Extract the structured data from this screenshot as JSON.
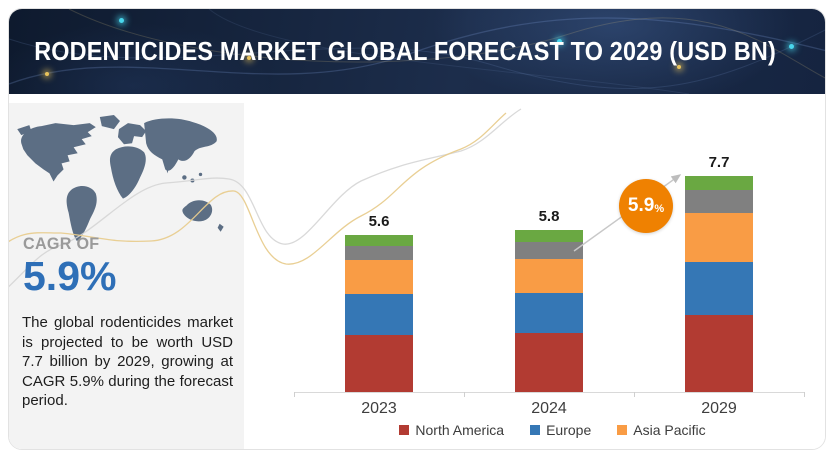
{
  "header": {
    "title": "RODENTICIDES MARKET GLOBAL FORECAST TO 2029 (USD BN)"
  },
  "sidebar": {
    "cagr_label": "CAGR OF",
    "cagr_value": "5.9%",
    "description": "The global rodenticides market is projected to be worth USD 7.7 billion by 2029, growing at CAGR 5.9% during the forecast period."
  },
  "colors": {
    "header_bg": "#16243c",
    "panel_bg": "#f3f3f3",
    "map_slate": "#5c6e84",
    "cagr_blue": "#2e6fb7",
    "axis_gray": "#d9d9d9",
    "wave_tan": "#e8cc8e",
    "wave_gray": "#d5d5d5"
  },
  "chart_data": {
    "type": "bar",
    "stacked": true,
    "title": "RODENTICIDES MARKET GLOBAL FORECAST TO 2029 (USD BN)",
    "xlabel": "",
    "ylabel": "",
    "y_axis_visible": false,
    "gridlines": false,
    "legend_position": "bottom",
    "categories": [
      "2023",
      "2024",
      "2029"
    ],
    "totals": [
      5.6,
      5.8,
      7.7
    ],
    "series": [
      {
        "name": "North America",
        "color": "#b23b32",
        "in_legend": true,
        "values": [
          2.05,
          2.1,
          2.75
        ]
      },
      {
        "name": "Europe",
        "color": "#3577b5",
        "in_legend": true,
        "values": [
          1.45,
          1.45,
          1.9
        ]
      },
      {
        "name": "Asia Pacific",
        "color": "#f99c45",
        "in_legend": true,
        "values": [
          1.2,
          1.2,
          1.75
        ]
      },
      {
        "name": "",
        "color": "#808080",
        "in_legend": false,
        "values": [
          0.5,
          0.6,
          0.8
        ]
      },
      {
        "name": "",
        "color": "#6aa842",
        "in_legend": false,
        "values": [
          0.4,
          0.45,
          0.5
        ]
      }
    ],
    "cagr_annotation": {
      "value": "5.9",
      "suffix": "%",
      "color": "#ef8101"
    }
  }
}
